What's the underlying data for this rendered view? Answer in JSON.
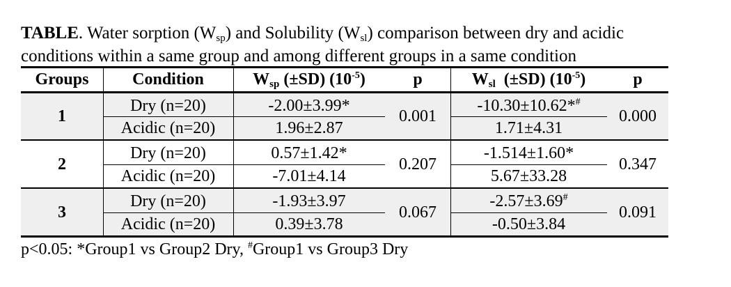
{
  "caption": {
    "label": "TABLE",
    "line1_a": ". Water sorption (W",
    "line1_sub1": "sp",
    "line1_b": ") and Solubility (W",
    "line1_sub2": "sl",
    "line1_c": ") comparison between dry and acidic",
    "line2": "conditions within a same group and among different groups in a same condition"
  },
  "headers": {
    "groups": "Groups",
    "condition": "Condition",
    "wsp_w": "W",
    "wsp_sub": "sp",
    "wsp_rest": " (±SD) (10",
    "wsp_exp": "-5",
    "wsp_close": ")",
    "p1": "p",
    "wsl_w": "W",
    "wsl_sub": "sl",
    "wsl_rest": "  (±SD) (10",
    "wsl_exp": "-5",
    "wsl_close": ")",
    "p2": "p"
  },
  "rows": [
    {
      "group": "1",
      "dry_label": "Dry (n=20)",
      "acidic_label": "Acidic (n=20)",
      "wsp_dry": "-2.00±3.99*",
      "wsp_acidic": "1.96±2.87",
      "p_wsp": "0.001",
      "wsl_dry": "-10.30±10.62*",
      "wsl_dry_sup": "#",
      "wsl_acidic": "1.71±4.31",
      "p_wsl": "0.000"
    },
    {
      "group": "2",
      "dry_label": "Dry (n=20)",
      "acidic_label": "Acidic (n=20)",
      "wsp_dry": "0.57±1.42*",
      "wsp_acidic": "-7.01±4.14",
      "p_wsp": "0.207",
      "wsl_dry": "-1.514±1.60*",
      "wsl_dry_sup": "",
      "wsl_acidic": "5.67±33.28",
      "p_wsl": "0.347"
    },
    {
      "group": "3",
      "dry_label": "Dry (n=20)",
      "acidic_label": "Acidic (n=20)",
      "wsp_dry": "-1.93±3.97",
      "wsp_acidic": "0.39±3.78",
      "p_wsp": "0.067",
      "wsl_dry": "-2.57±3.69",
      "wsl_dry_sup": "#",
      "wsl_acidic": "-0.50±3.84",
      "p_wsl": "0.091"
    }
  ],
  "footnote": {
    "a": "p<0.05: *Group1 vs Group2 Dry, ",
    "sup": "#",
    "b": "Group1 vs Group3 Dry"
  }
}
